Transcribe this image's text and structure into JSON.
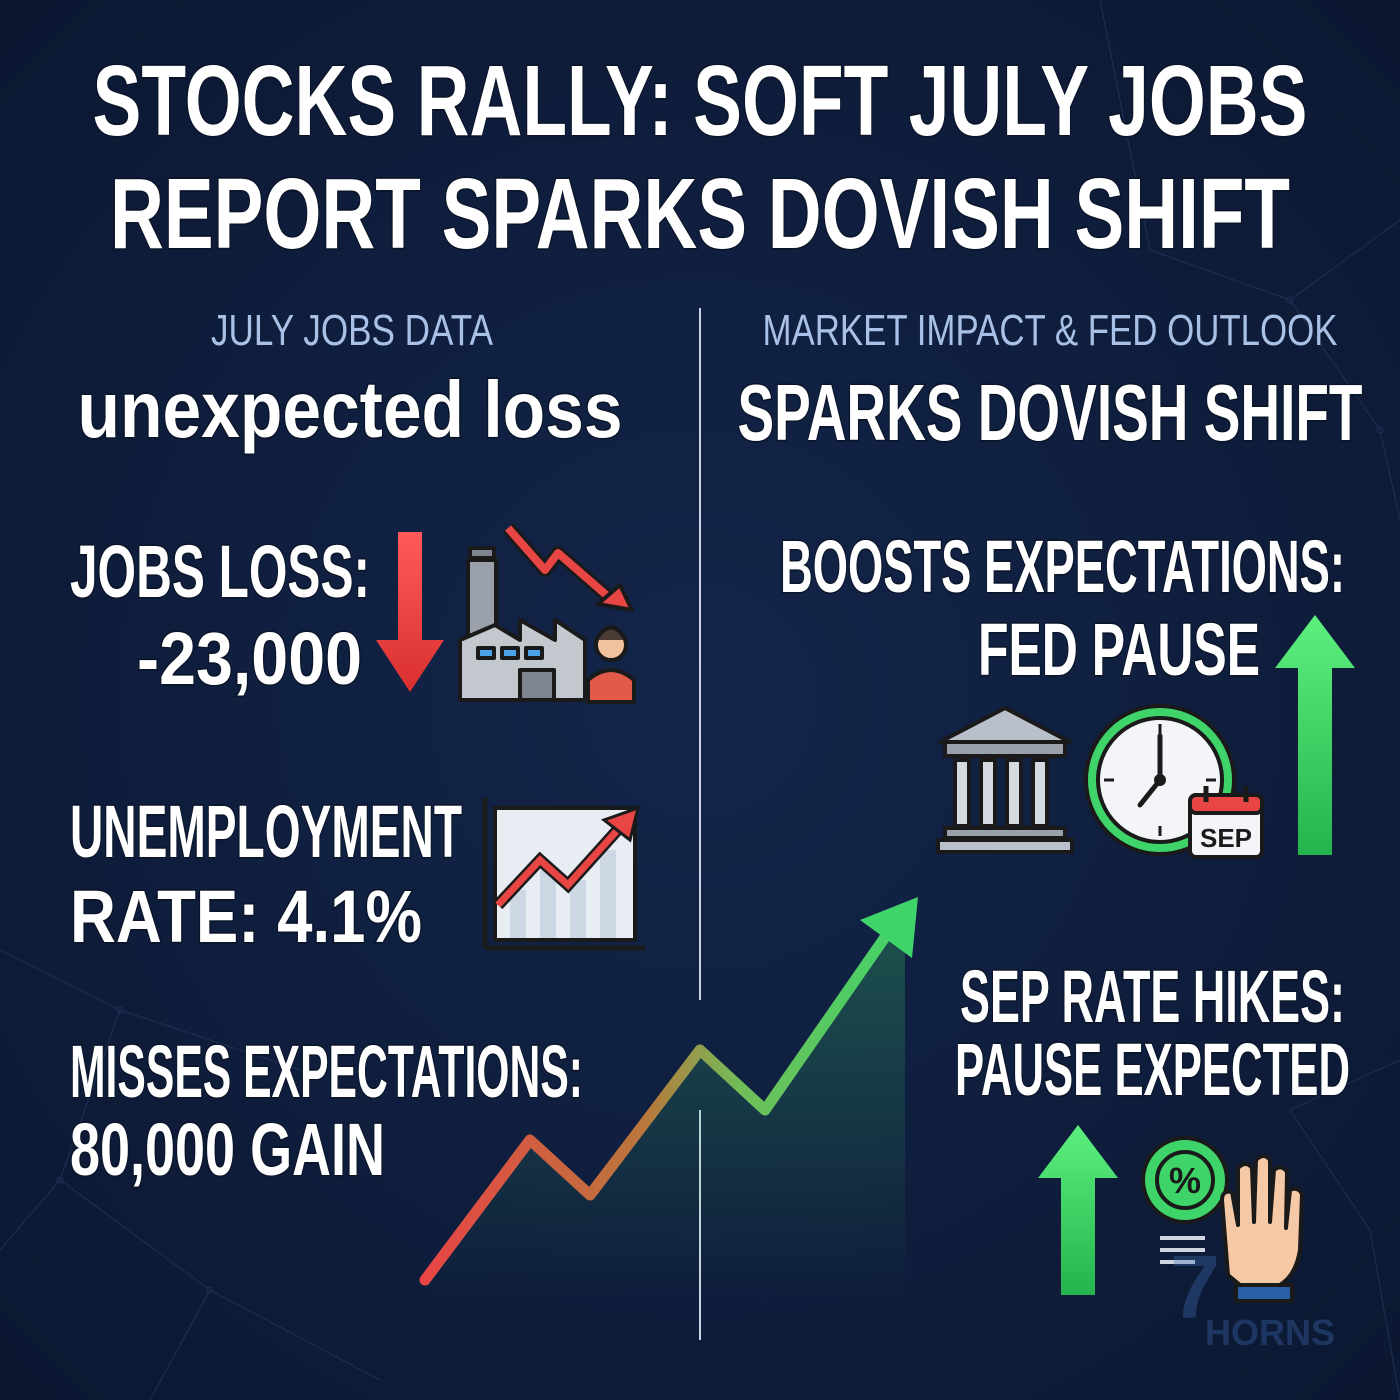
{
  "header": {
    "title_lines": [
      "STOCKS RALLY: SOFT JULY JOBS",
      "REPORT SPARKS DOVISH SHIFT"
    ]
  },
  "left": {
    "heading": "JULY JOBS DATA",
    "subheading": "unexpected loss",
    "items": [
      {
        "lines": [
          "JOBS LOSS:",
          "-23,000"
        ]
      },
      {
        "lines": [
          "UNEMPLOYMENT",
          "RATE:  4.1%"
        ]
      },
      {
        "lines": [
          "MISSES EXPECTATIONS:",
          "80,000 GAIN"
        ]
      }
    ]
  },
  "right": {
    "heading": "MARKET IMPACT & FED OUTLOOK",
    "subheading": "SPARKS DOVISH SHIFT",
    "items": [
      {
        "lines": [
          "BOOSTS EXPECTATIONS:",
          "FED PAUSE"
        ]
      },
      {
        "lines": [
          "SEP RATE HIKES:",
          "PAUSE EXPECTED"
        ]
      }
    ]
  },
  "icons": {
    "calendar": "SEP",
    "percent": "%"
  },
  "watermark": {
    "number": "7",
    "name": "HORNS"
  }
}
